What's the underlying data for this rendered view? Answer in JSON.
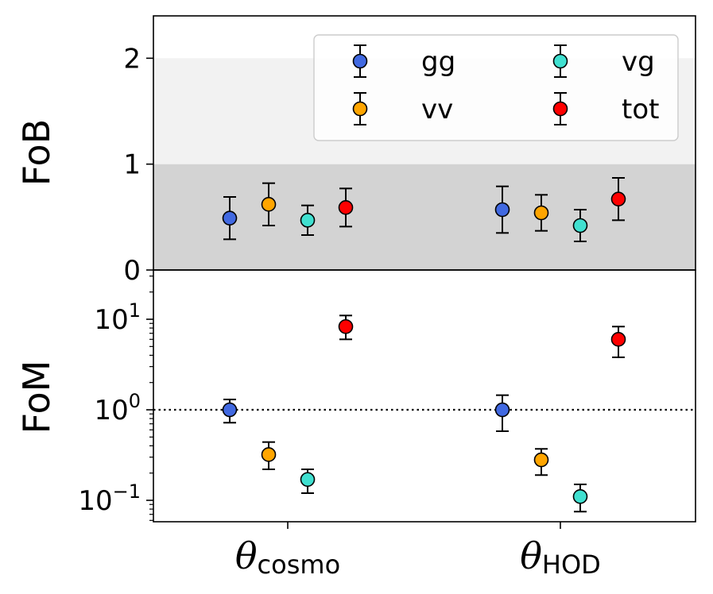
{
  "chart_data": [
    {
      "type": "scatter",
      "panel": "top",
      "ylabel": "FoB",
      "ylim": [
        0,
        2.4
      ],
      "yscale": "linear",
      "yticks": [
        "0",
        "1",
        "2"
      ],
      "shaded_bands": [
        {
          "from": 0,
          "to": 1,
          "color": "#d3d3d3"
        },
        {
          "from": 1,
          "to": 2,
          "color": "#f2f2f2"
        }
      ],
      "categories": [
        "cosmo",
        "HOD"
      ],
      "series": [
        {
          "name": "gg",
          "color": "#4169e1",
          "values": [
            0.49,
            0.57
          ],
          "err": [
            0.2,
            0.22
          ]
        },
        {
          "name": "vv",
          "color": "#ffa500",
          "values": [
            0.62,
            0.54
          ],
          "err": [
            0.2,
            0.17
          ]
        },
        {
          "name": "vg",
          "color": "#40e0d0",
          "values": [
            0.47,
            0.42
          ],
          "err": [
            0.14,
            0.15
          ]
        },
        {
          "name": "tot",
          "color": "#ff0000",
          "values": [
            0.59,
            0.67
          ],
          "err": [
            0.18,
            0.2
          ]
        }
      ],
      "legend": {
        "placement": "upper-right",
        "columns": 2,
        "order": [
          "gg",
          "vg",
          "vv",
          "tot"
        ]
      }
    },
    {
      "type": "scatter",
      "panel": "bottom",
      "ylabel": "FoM",
      "yscale": "log",
      "ylim": [
        0.058,
        35
      ],
      "yticks": [
        0.1,
        1,
        10
      ],
      "reference_line": {
        "y": 1,
        "style": "dotted"
      },
      "categories": [
        "cosmo",
        "HOD"
      ],
      "series": [
        {
          "name": "gg",
          "color": "#4169e1",
          "values": [
            1.0,
            1.0
          ],
          "lower": [
            0.72,
            0.58
          ],
          "upper": [
            1.3,
            1.45
          ]
        },
        {
          "name": "vv",
          "color": "#ffa500",
          "values": [
            0.32,
            0.28
          ],
          "lower": [
            0.22,
            0.19
          ],
          "upper": [
            0.44,
            0.37
          ]
        },
        {
          "name": "vg",
          "color": "#40e0d0",
          "values": [
            0.17,
            0.11
          ],
          "lower": [
            0.12,
            0.075
          ],
          "upper": [
            0.22,
            0.15
          ]
        },
        {
          "name": "tot",
          "color": "#ff0000",
          "values": [
            8.3,
            6.0
          ],
          "lower": [
            6.0,
            3.8
          ],
          "upper": [
            11.0,
            8.3
          ]
        }
      ]
    }
  ],
  "x_categories": [
    {
      "main": "θ",
      "sub": "cosmo"
    },
    {
      "main": "θ",
      "sub": "HOD"
    }
  ],
  "y_tick_labels": {
    "top": [
      "0",
      "1",
      "2"
    ],
    "bottom": [
      {
        "base": "10",
        "exp": "−1"
      },
      {
        "base": "10",
        "exp": "0"
      },
      {
        "base": "10",
        "exp": "1"
      }
    ]
  }
}
